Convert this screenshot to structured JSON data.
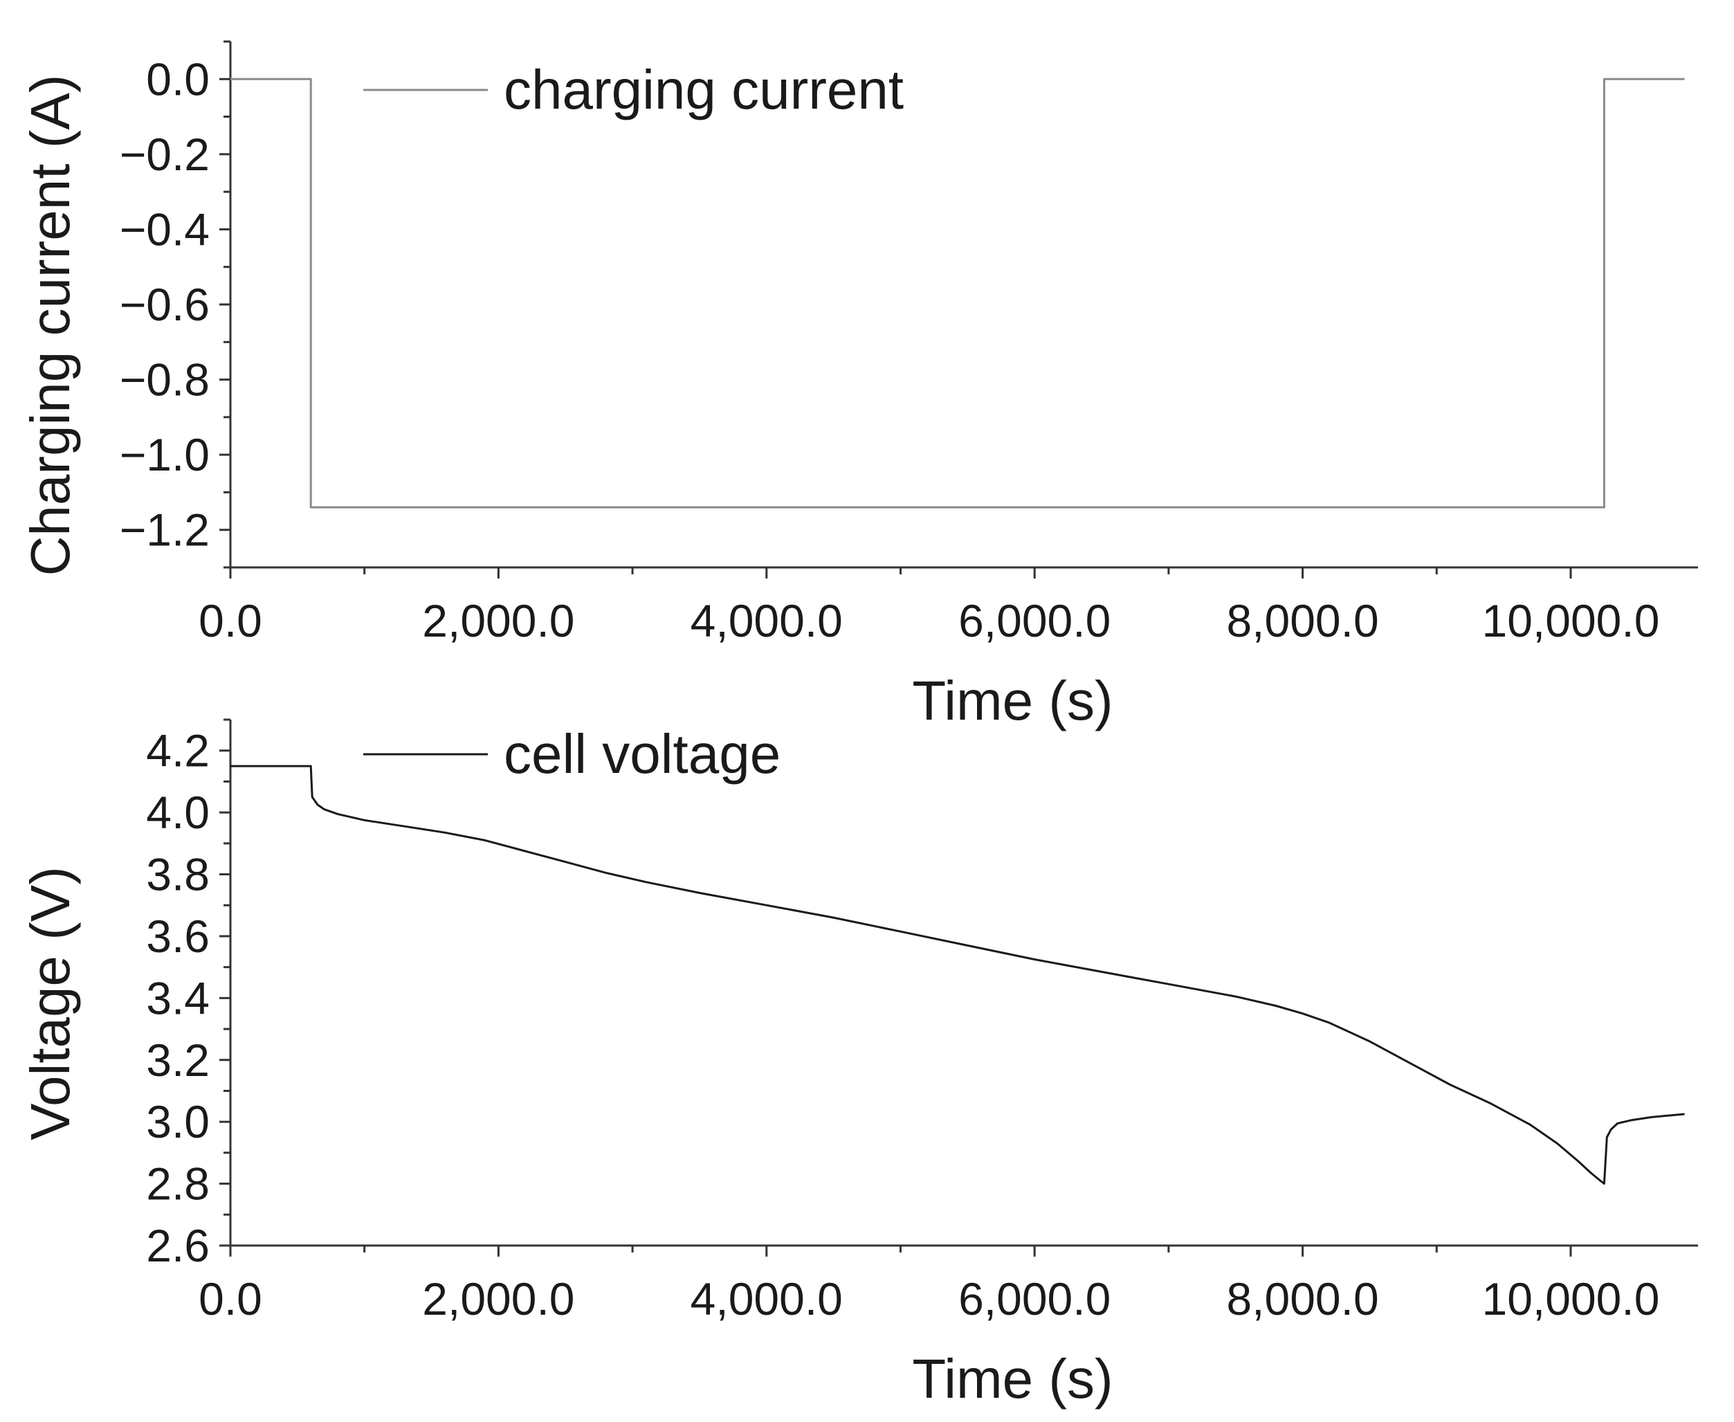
{
  "chart_data": [
    {
      "type": "line",
      "xlabel": "Time (s)",
      "ylabel": "Charging current (A)",
      "xlim": [
        0,
        10950
      ],
      "ylim": [
        -1.3,
        0.1
      ],
      "x_ticks": [
        0,
        2000,
        4000,
        6000,
        8000,
        10000
      ],
      "x_tick_labels": [
        "0.0",
        "2,000.0",
        "4,000.0",
        "6,000.0",
        "8,000.0",
        "10,000.0"
      ],
      "y_ticks": [
        0.0,
        -0.2,
        -0.4,
        -0.6,
        -0.8,
        -1.0,
        -1.2
      ],
      "y_tick_labels": [
        "0.0",
        "−0.2",
        "−0.4",
        "−0.6",
        "−0.8",
        "−1.0",
        "−1.2"
      ],
      "legend_position": "top-left",
      "series": [
        {
          "name": "charging current",
          "color": "#8a8a8a",
          "x": [
            0,
            600,
            600,
            10250,
            10250,
            10850
          ],
          "y": [
            0,
            0,
            -1.14,
            -1.14,
            0,
            0
          ]
        }
      ]
    },
    {
      "type": "line",
      "xlabel": "Time (s)",
      "ylabel": "Voltage (V)",
      "xlim": [
        0,
        10950
      ],
      "ylim": [
        2.6,
        4.3
      ],
      "x_ticks": [
        0,
        2000,
        4000,
        6000,
        8000,
        10000
      ],
      "x_tick_labels": [
        "0.0",
        "2,000.0",
        "4,000.0",
        "6,000.0",
        "8,000.0",
        "10,000.0"
      ],
      "y_ticks": [
        2.6,
        2.8,
        3.0,
        3.2,
        3.4,
        3.6,
        3.8,
        4.0,
        4.2
      ],
      "y_tick_labels": [
        "2.6",
        "2.8",
        "3.0",
        "3.2",
        "3.4",
        "3.6",
        "3.8",
        "4.0",
        "4.2"
      ],
      "legend_position": "top-left",
      "series": [
        {
          "name": "cell voltage",
          "color": "#1a1a1a",
          "x": [
            0,
            590,
            600,
            610,
            650,
            700,
            800,
            1000,
            1300,
            1600,
            1900,
            2200,
            2500,
            2800,
            3100,
            3500,
            4000,
            4500,
            5000,
            5500,
            6000,
            6500,
            7000,
            7500,
            7800,
            8000,
            8200,
            8500,
            8800,
            9100,
            9400,
            9700,
            9900,
            10050,
            10150,
            10220,
            10250,
            10270,
            10300,
            10350,
            10450,
            10600,
            10850
          ],
          "y": [
            4.15,
            4.15,
            4.15,
            4.05,
            4.025,
            4.01,
            3.995,
            3.975,
            3.955,
            3.935,
            3.91,
            3.875,
            3.84,
            3.805,
            3.775,
            3.74,
            3.7,
            3.66,
            3.615,
            3.57,
            3.525,
            3.485,
            3.445,
            3.405,
            3.375,
            3.35,
            3.32,
            3.26,
            3.19,
            3.12,
            3.06,
            2.99,
            2.93,
            2.875,
            2.835,
            2.81,
            2.8,
            2.95,
            2.975,
            2.995,
            3.005,
            3.015,
            3.025
          ]
        }
      ]
    }
  ]
}
